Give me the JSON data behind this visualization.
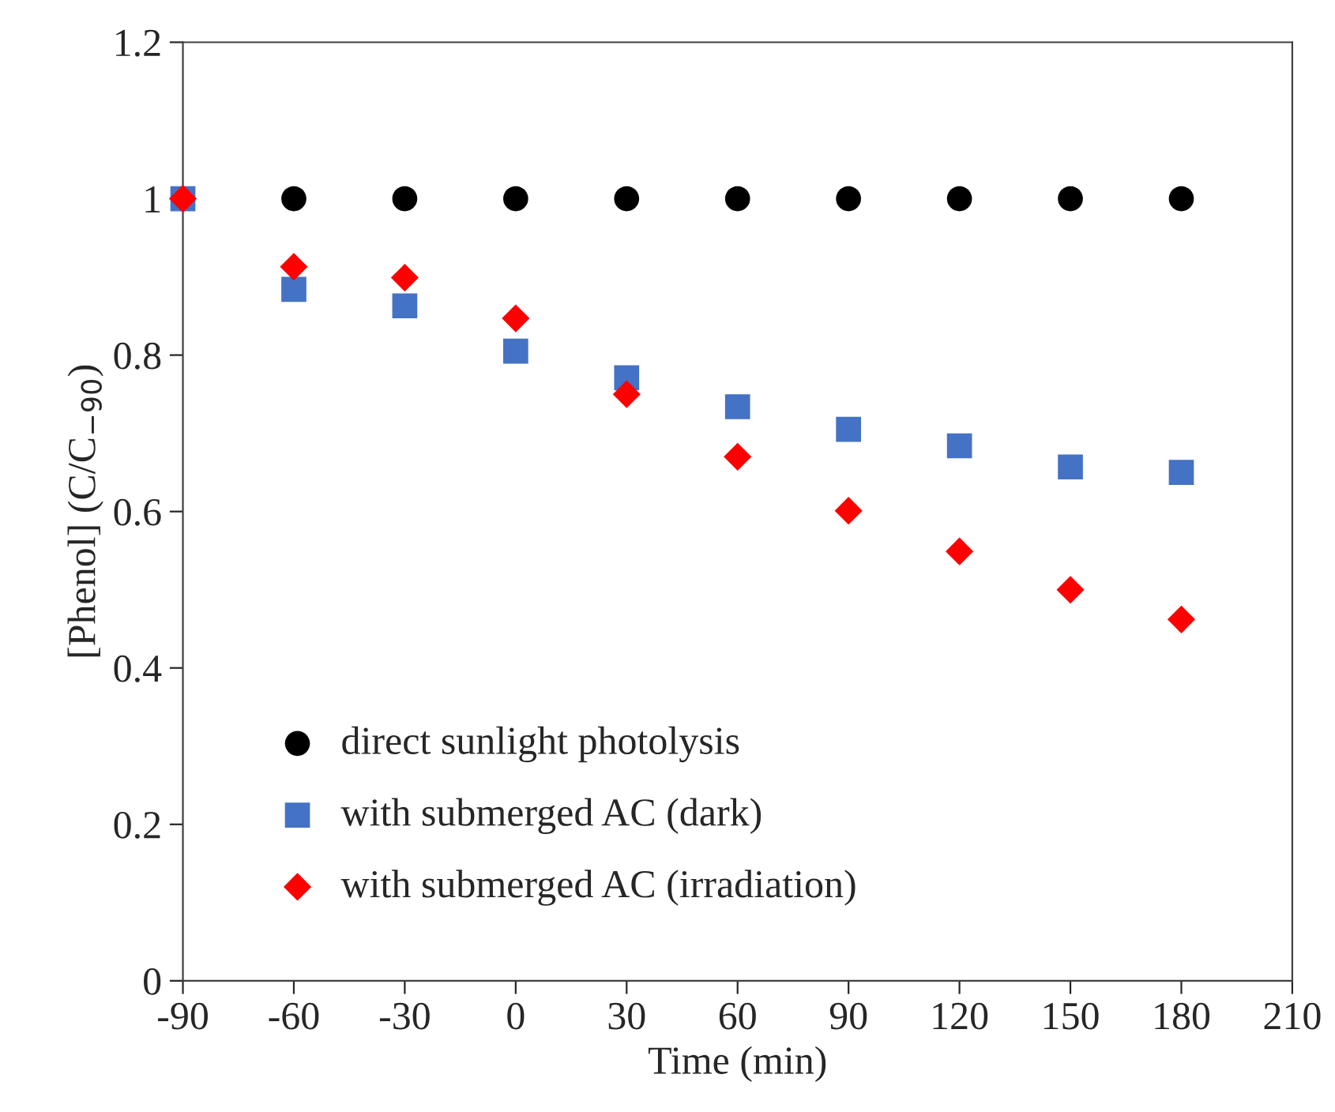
{
  "chart_data": {
    "type": "scatter",
    "xlabel": "Time (min)",
    "ylabel": "[Phenol] (C/C$_{−90}$)",
    "x": [
      -90,
      -60,
      -30,
      0,
      30,
      60,
      90,
      120,
      150,
      180
    ],
    "xlim": [
      -90,
      210
    ],
    "xticks": [
      -90,
      -60,
      -30,
      0,
      30,
      60,
      90,
      120,
      150,
      180,
      210
    ],
    "ylim": [
      0,
      1.2
    ],
    "yticks": [
      0,
      0.2,
      0.4,
      0.6,
      0.8,
      1,
      1.2
    ],
    "grid": false,
    "legend": "bottom left",
    "series": [
      {
        "name": "direct sunlight photolysis",
        "color": "#000000",
        "marker": "circle",
        "values": [
          null,
          1.0,
          1.0,
          1.0,
          1.0,
          1.0,
          1.0,
          1.0,
          1.0,
          1.0
        ]
      },
      {
        "name": "with submerged AC (dark)",
        "color": "#4472c4",
        "marker": "square",
        "values": [
          1.0,
          0.884,
          0.863,
          0.805,
          0.771,
          0.734,
          0.705,
          0.684,
          0.657,
          0.65
        ]
      },
      {
        "name": "with submerged AC (irradiation)",
        "color": "#ff0000",
        "marker": "diamond",
        "values": [
          1.0,
          0.913,
          0.899,
          0.847,
          0.75,
          0.67,
          0.601,
          0.549,
          0.5,
          0.462
        ]
      }
    ]
  }
}
